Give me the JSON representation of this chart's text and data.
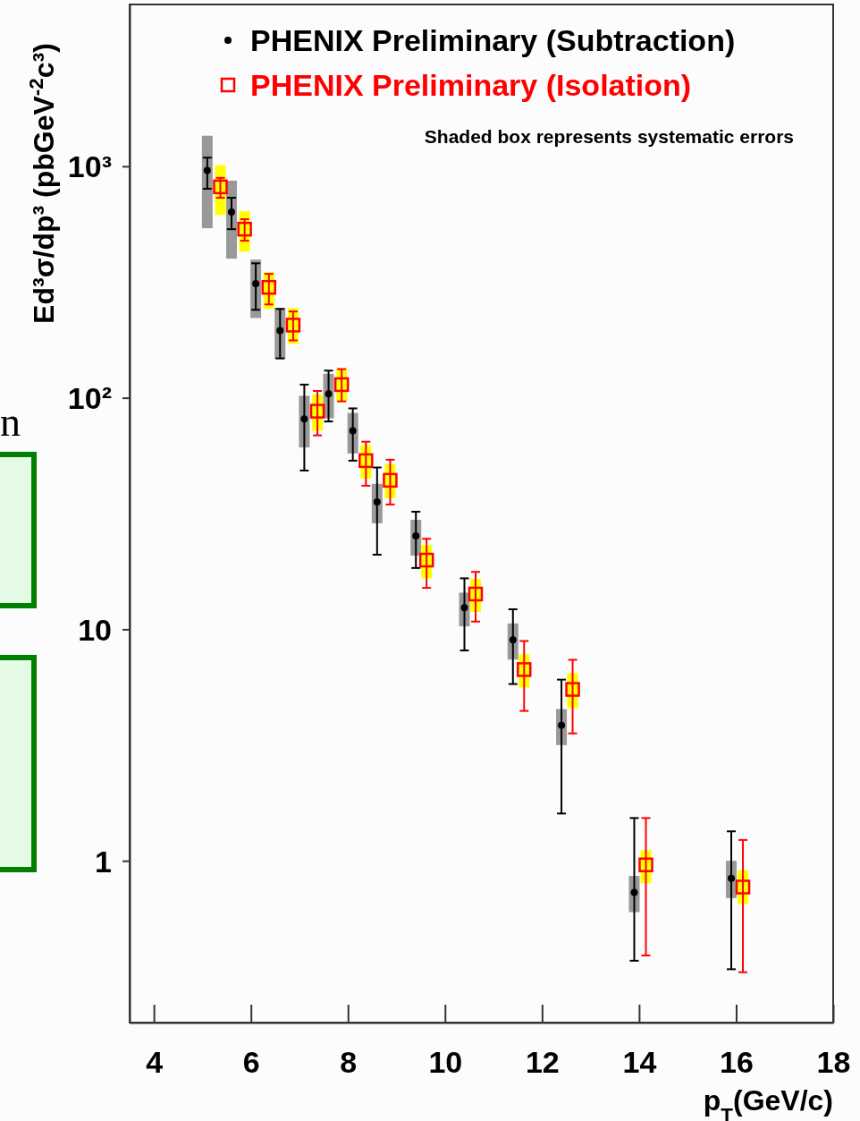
{
  "chart_data": {
    "type": "scatter",
    "xlabel": "p$_{T}$(GeV/c)",
    "ylabel": "Ed³σ/dp³ (pbGeV$^{-2}$c³)",
    "annotations": [
      "Shaded box represents systematic errors",
      "n"
    ],
    "xlim": [
      3.5,
      18
    ],
    "xticks": [
      4,
      6,
      8,
      10,
      12,
      14,
      16,
      18
    ],
    "ylim": [
      0.2,
      5000
    ],
    "log": true,
    "yticks": [
      1,
      10,
      {
        "value": 100,
        "label": "10²"
      },
      {
        "value": 1000,
        "label": "10³"
      }
    ],
    "grid": false,
    "legend": "top right",
    "series": [
      {
        "type": "bar",
        "color": "#999999",
        "x": [
          5.1,
          5.6,
          6.1,
          6.6,
          7.1,
          7.6,
          8.1,
          8.6,
          9.4,
          10.4,
          11.4,
          12.4,
          13.9,
          15.9
        ],
        "base": [
          540,
          399,
          221,
          147,
          61,
          81.5,
          57.5,
          28.7,
          20.8,
          10.3,
          7.4,
          3.16,
          0.6,
          0.69
        ],
        "values": [
          815,
          468,
          174,
          97,
          41,
          45.5,
          28.5,
          13.8,
          8.9,
          4.1,
          3.2,
          1.36,
          0.26,
          0.31
        ]
      },
      {
        "type": "bar",
        "color": "#ffff00",
        "x": [
          5.37,
          5.87,
          6.37,
          6.87,
          7.37,
          7.87,
          8.37,
          8.87,
          9.62,
          10.63,
          11.63,
          12.63,
          14.14,
          16.14
        ],
        "base": [
          617,
          428,
          242,
          171,
          72,
          96.5,
          44.8,
          36.8,
          16.6,
          11.9,
          5.6,
          4.56,
          0.8,
          0.65
        ],
        "values": [
          393,
          212,
          107,
          73,
          31,
          37.5,
          17.5,
          14.9,
          6.5,
          4.6,
          2.19,
          1.9,
          0.31,
          0.26
        ]
      },
      {
        "name": "PHENIX Preliminary (Subtraction)",
        "color": "#000000",
        "marker": "circle",
        "x": [
          5.1,
          5.6,
          6.1,
          6.6,
          7.1,
          7.6,
          8.1,
          8.6,
          9.4,
          10.4,
          11.4,
          12.4,
          13.9,
          15.9
        ],
        "values": [
          960,
          635,
          311,
          195,
          81,
          104,
          72,
          35.5,
          25.3,
          12.4,
          9.0,
          3.85,
          0.73,
          0.84
        ],
        "errors": [
          [
            800,
            1090
          ],
          [
            535,
            731
          ],
          [
            240,
            381
          ],
          [
            148,
            242
          ],
          [
            48.5,
            114
          ],
          [
            79,
            131
          ],
          [
            53.5,
            90
          ],
          [
            21,
            50
          ],
          [
            18.4,
            32.2
          ],
          [
            8.1,
            16.6
          ],
          [
            5.8,
            12.2
          ],
          [
            1.6,
            6.06
          ],
          [
            0.37,
            1.53
          ],
          [
            0.34,
            1.34
          ]
        ]
      },
      {
        "name": "PHENIX Preliminary (Isolation)",
        "color": "#ff0000",
        "marker": "square",
        "x": [
          5.37,
          5.87,
          6.37,
          6.87,
          7.37,
          7.87,
          8.37,
          8.87,
          9.62,
          10.63,
          11.63,
          12.63,
          14.14,
          16.14
        ],
        "values": [
          815,
          535,
          300,
          206,
          87.5,
          114,
          53.5,
          44,
          19.9,
          14.2,
          6.7,
          5.5,
          0.96,
          0.77
        ],
        "errors": [
          [
            731,
            891
          ],
          [
            477,
            591
          ],
          [
            253,
            343
          ],
          [
            177,
            236
          ],
          [
            68.8,
            107
          ],
          [
            96.5,
            133
          ],
          [
            41.7,
            64.6
          ],
          [
            34.6,
            54
          ],
          [
            15.1,
            24.6
          ],
          [
            10.8,
            17.7
          ],
          [
            4.44,
            8.9
          ],
          [
            3.55,
            7.38
          ],
          [
            0.39,
            1.53
          ],
          [
            0.33,
            1.23
          ]
        ]
      }
    ]
  }
}
